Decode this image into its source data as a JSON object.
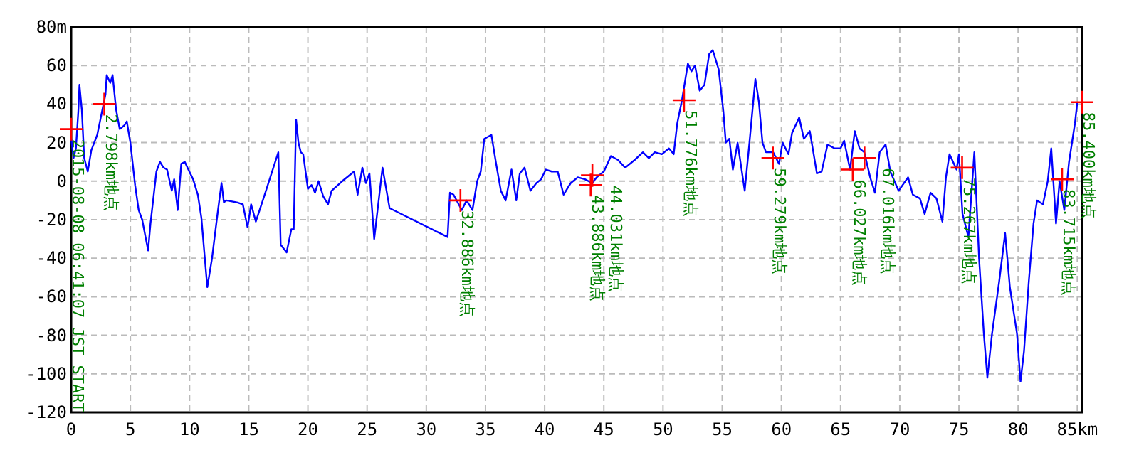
{
  "chart_data": {
    "type": "line",
    "xlim": [
      0,
      85.4
    ],
    "ylim": [
      -120,
      80
    ],
    "xticks": [
      0,
      5,
      10,
      15,
      20,
      25,
      30,
      35,
      40,
      45,
      50,
      55,
      60,
      65,
      70,
      75,
      80,
      {
        "value": 85,
        "label": "85km"
      }
    ],
    "yticks": [
      -120,
      -100,
      -80,
      -60,
      -40,
      -20,
      0,
      20,
      40,
      60,
      {
        "value": 80,
        "label": "80m"
      }
    ],
    "grid": true,
    "series": [
      {
        "color": "#0000ff",
        "x": [
          0,
          0.2,
          0.4,
          0.6,
          0.7,
          0.9,
          1.1,
          1.4,
          1.7,
          2.2,
          2.6,
          2.9,
          3.0,
          3.3,
          3.5,
          3.8,
          4.1,
          4.5,
          4.7,
          5.0,
          5.4,
          5.7,
          6.0,
          6.5,
          6.7,
          7.2,
          7.5,
          7.8,
          8.1,
          8.5,
          8.7,
          9.0,
          9.3,
          9.6,
          9.9,
          10.3,
          10.7,
          11.0,
          11.4,
          11.5,
          11.9,
          12.3,
          12.7,
          12.9,
          13.1,
          14.0,
          14.5,
          14.9,
          15.2,
          15.6,
          16.4,
          17.5,
          17.7,
          18.2,
          18.6,
          18.8,
          19.0,
          19.2,
          19.4,
          19.6,
          20.0,
          20.3,
          20.6,
          20.9,
          21.3,
          21.7,
          22.0,
          22.9,
          23.9,
          24.2,
          24.6,
          24.9,
          25.2,
          25.6,
          26.3,
          26.9,
          31.8,
          32.0,
          32.3,
          33.0,
          33.4,
          33.9,
          34.3,
          34.6,
          34.9,
          35.5,
          35.9,
          36.3,
          36.7,
          37.2,
          37.6,
          37.9,
          38.3,
          38.8,
          39.3,
          39.7,
          40.1,
          40.6,
          41.1,
          41.6,
          42.2,
          42.8,
          43.4,
          44.0,
          44.4,
          45.0,
          45.6,
          46.2,
          46.8,
          47.6,
          48.3,
          48.8,
          49.3,
          49.9,
          50.5,
          50.9,
          51.2,
          51.6,
          52.1,
          52.4,
          52.7,
          53.1,
          53.5,
          53.9,
          54.2,
          54.7,
          55.1,
          55.3,
          55.6,
          55.9,
          56.3,
          56.9,
          57.3,
          57.8,
          58.1,
          58.4,
          58.7,
          59.3,
          59.8,
          60.1,
          60.6,
          60.9,
          61.5,
          61.9,
          62.4,
          63.0,
          63.4,
          63.9,
          64.5,
          65.0,
          65.3,
          65.8,
          66.2,
          66.6,
          67.0,
          67.5,
          67.9,
          68.3,
          68.8,
          69.2,
          69.9,
          70.7,
          71.1,
          71.7,
          72.1,
          72.6,
          73.1,
          73.6,
          73.9,
          74.2,
          74.8,
          75.0,
          75.3,
          75.8,
          76.3,
          76.7,
          77.1,
          77.4,
          77.8,
          78.4,
          78.9,
          79.3,
          79.9,
          80.2,
          80.5,
          80.9,
          81.3,
          81.6,
          82.1,
          82.5,
          82.8,
          83.2,
          83.5,
          83.9,
          84.3,
          84.8,
          85.0
        ],
        "values": [
          22,
          12,
          17,
          36,
          50,
          37,
          12,
          5,
          16,
          24,
          36,
          45,
          55,
          51,
          55,
          37,
          27,
          29,
          31,
          20,
          -2,
          -15,
          -20,
          -36,
          -22,
          5,
          10,
          7,
          6,
          -5,
          1,
          -15,
          9,
          10,
          6,
          1,
          -7,
          -19,
          -48,
          -55,
          -40,
          -20,
          -1,
          -11,
          -10,
          -11,
          -12,
          -24,
          -12,
          -21,
          -6,
          15,
          -33,
          -37,
          -25,
          -25,
          32,
          20,
          15,
          14,
          -4,
          -2,
          -6,
          0,
          -8,
          -12,
          -5,
          0,
          5,
          -7,
          7,
          -1,
          4,
          -30,
          7,
          -14,
          -29,
          -6,
          -7,
          -15,
          -10,
          -15,
          0,
          5,
          22,
          24,
          9,
          -5,
          -10,
          6,
          -10,
          4,
          7,
          -5,
          -1,
          1,
          6,
          5,
          5,
          -7,
          -1,
          2,
          1,
          -1,
          2,
          5,
          13,
          11,
          7,
          11,
          15,
          12,
          15,
          14,
          17,
          14,
          30,
          42,
          61,
          57,
          60,
          47,
          50,
          66,
          68,
          58,
          36,
          20,
          22,
          6,
          20,
          -5,
          20,
          53,
          41,
          20,
          15,
          15,
          9,
          20,
          14,
          25,
          33,
          22,
          26,
          4,
          5,
          19,
          17,
          17,
          21,
          6,
          26,
          17,
          15,
          2,
          -6,
          15,
          19,
          5,
          -5,
          2,
          -7,
          -9,
          -17,
          -6,
          -9,
          -21,
          2,
          14,
          6,
          14,
          -17,
          -29,
          15,
          -40,
          -79,
          -102,
          -79,
          -52,
          -27,
          -55,
          -79,
          -104,
          -88,
          -52,
          -22,
          -10,
          -12,
          0,
          17,
          -22,
          0,
          -15,
          10,
          30,
          41
        ]
      },
      {
        "type": "scatter",
        "color": "#ff0000",
        "marker": "cross",
        "x": [
          0,
          2.798,
          32.886,
          43.886,
          44.031,
          51.776,
          59.279,
          66.027,
          67.016,
          75.267,
          83.715,
          85.4
        ],
        "values": [
          27,
          40,
          -10,
          -2,
          3,
          42,
          12,
          6,
          12,
          7,
          1,
          41
        ]
      }
    ],
    "annotations": [
      {
        "text": "2015-08-08 06:41:07 JST START",
        "x": 0,
        "y": 27
      },
      {
        "text": "2.798km地点",
        "x": 2.798,
        "y": 40
      },
      {
        "text": "32.886km地点",
        "x": 32.886,
        "y": -10
      },
      {
        "text": "43.886km地点",
        "x": 43.886,
        "y": -2
      },
      {
        "text": "44.031km地点",
        "x": 44.031,
        "y": 3
      },
      {
        "text": "51.776km地点",
        "x": 51.776,
        "y": 42
      },
      {
        "text": "59.279km地点",
        "x": 59.279,
        "y": 12
      },
      {
        "text": "66.027km地点",
        "x": 66.027,
        "y": 6
      },
      {
        "text": "67.016km地点",
        "x": 67.016,
        "y": 12
      },
      {
        "text": "75.267km地点",
        "x": 75.267,
        "y": 7
      },
      {
        "text": "83.715km地点",
        "x": 83.715,
        "y": 1
      },
      {
        "text": "85.400km地点",
        "x": 85.4,
        "y": 41
      }
    ]
  }
}
